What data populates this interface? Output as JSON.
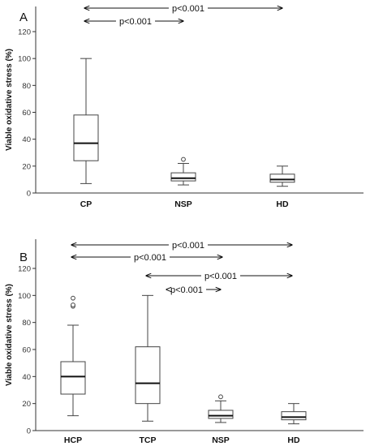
{
  "chart_data": [
    {
      "type": "box",
      "panel_label": "A",
      "ylabel": "Viable oxidative stress (%)",
      "ylim": [
        0,
        130
      ],
      "yticks": [
        0,
        20,
        40,
        60,
        80,
        100,
        120
      ],
      "categories": [
        "CP",
        "NSP",
        "HD"
      ],
      "boxes": [
        {
          "category": "CP",
          "min": 7,
          "q1": 24,
          "median": 37,
          "q3": 58,
          "max": 100,
          "outliers": []
        },
        {
          "category": "NSP",
          "min": 6,
          "q1": 9,
          "median": 11,
          "q3": 15,
          "max": 22,
          "outliers": [
            25
          ]
        },
        {
          "category": "HD",
          "min": 5,
          "q1": 8,
          "median": 10,
          "q3": 14,
          "max": 20,
          "outliers": []
        }
      ],
      "comparisons": [
        {
          "from": "CP",
          "to": "HD",
          "label": "p<0.001"
        },
        {
          "from": "CP",
          "to": "NSP",
          "label": "p<0.001"
        }
      ]
    },
    {
      "type": "box",
      "panel_label": "B",
      "ylabel": "Viable oxidative stress (%)",
      "ylim": [
        0,
        130
      ],
      "yticks": [
        0,
        20,
        40,
        60,
        80,
        100,
        120
      ],
      "categories": [
        "HCP",
        "TCP",
        "NSP",
        "HD"
      ],
      "boxes": [
        {
          "category": "HCP",
          "min": 11,
          "q1": 27,
          "median": 40,
          "q3": 51,
          "max": 78,
          "outliers": [
            92,
            93,
            98
          ]
        },
        {
          "category": "TCP",
          "min": 7,
          "q1": 20,
          "median": 35,
          "q3": 62,
          "max": 100,
          "outliers": []
        },
        {
          "category": "NSP",
          "min": 6,
          "q1": 9,
          "median": 11,
          "q3": 15,
          "max": 22,
          "outliers": [
            25
          ]
        },
        {
          "category": "HD",
          "min": 5,
          "q1": 8,
          "median": 10,
          "q3": 14,
          "max": 20,
          "outliers": []
        }
      ],
      "comparisons": [
        {
          "from": "HCP",
          "to": "HD",
          "label": "p<0.001"
        },
        {
          "from": "HCP",
          "to": "NSP",
          "label": "p<0.001"
        },
        {
          "from": "TCP",
          "to": "HD",
          "label": "p<0.001"
        },
        {
          "from": "TCP",
          "to": "NSP",
          "label": "p<0.001"
        }
      ]
    }
  ]
}
